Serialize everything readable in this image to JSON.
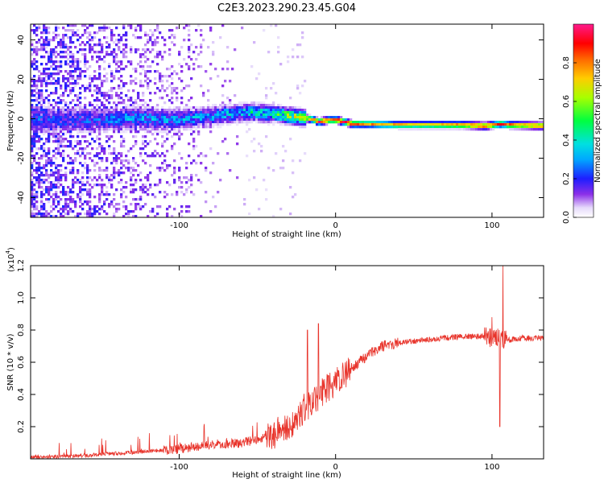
{
  "figure": {
    "title": "C2E3.2023.290.23.45.G04"
  },
  "colors": {
    "snr_line": "#e8332a",
    "colormap": [
      "#ffffff",
      "#d7c4f7",
      "#8b2fe8",
      "#1e1eff",
      "#00e0ff",
      "#00ff40",
      "#d8ff00",
      "#ff8800",
      "#ff0000",
      "#ff1a8c"
    ]
  },
  "chart_data": [
    {
      "type": "heatmap",
      "xlabel": "Height of straight line (km)",
      "ylabel": "Frequency (Hz)",
      "xlim": [
        -195,
        133
      ],
      "ylim": [
        -50,
        48
      ],
      "x_ticks": [
        -100,
        0,
        100
      ],
      "x_tick_labels": [
        "-100",
        "0",
        "100"
      ],
      "y_ticks": [
        -40,
        -20,
        0,
        20,
        40
      ],
      "y_tick_labels": [
        "-40",
        "-20",
        "0",
        "20",
        "40"
      ],
      "grid": false,
      "colorbar": {
        "label": "Normalized spectral amplitude",
        "range": [
          0,
          1
        ],
        "ticks": [
          0.0,
          0.2,
          0.4,
          0.6,
          0.8
        ],
        "tick_labels": [
          "0.0",
          "0.2",
          "0.4",
          "0.6",
          "0.8"
        ]
      },
      "ridge": {
        "height_km": [
          -150,
          -130,
          -110,
          -90,
          -70,
          -55,
          -40,
          -30,
          -20,
          -14,
          -12,
          -5,
          0,
          5,
          10,
          20,
          40,
          60,
          80,
          95,
          100,
          105,
          110,
          133
        ],
        "frequency_hz": [
          0,
          1,
          0,
          1,
          3,
          4,
          3,
          2,
          1,
          0,
          -1,
          0,
          0,
          -1,
          -2,
          -2,
          -2.5,
          -2.5,
          -2.5,
          -3,
          -2.5,
          -2,
          -2.5,
          -3
        ],
        "peak_amplitude": [
          0.3,
          0.4,
          0.4,
          0.4,
          0.45,
          0.5,
          0.6,
          0.8,
          0.7,
          0.9,
          1.0,
          0.9,
          1.0,
          1.0,
          0.95,
          0.85,
          0.8,
          0.8,
          0.9,
          0.95,
          0.9,
          0.95,
          0.9,
          0.9
        ]
      }
    },
    {
      "type": "line",
      "xlabel": "Height of straight line (km)",
      "ylabel": "SNR (10 * v/v)",
      "y_multiplier": "(x10",
      "y_multiplier_exp": "4",
      "y_multiplier_close": ")",
      "xlim": [
        -195,
        133
      ],
      "ylim": [
        0,
        1.2
      ],
      "x_ticks": [
        -100,
        0,
        100
      ],
      "x_tick_labels": [
        "-100",
        "0",
        "100"
      ],
      "y_ticks": [
        0.2,
        0.4,
        0.6,
        0.8,
        1.0,
        1.2
      ],
      "y_tick_labels": [
        "0.2",
        "0.4",
        "0.6",
        "0.8",
        "1.0",
        "1.2"
      ],
      "grid": false,
      "series": [
        {
          "x": [
            -195,
            -160,
            -130,
            -100,
            -80,
            -60,
            -40,
            -30,
            -20,
            -10,
            0,
            10,
            20,
            30,
            40,
            50,
            60,
            80,
            95,
            100,
            105,
            110,
            120,
            133
          ],
          "y": [
            0.01,
            0.02,
            0.04,
            0.06,
            0.09,
            0.1,
            0.14,
            0.2,
            0.3,
            0.4,
            0.48,
            0.56,
            0.64,
            0.7,
            0.72,
            0.73,
            0.74,
            0.76,
            0.76,
            0.75,
            0.75,
            0.74,
            0.75,
            0.75
          ]
        }
      ],
      "spikes": [
        {
          "x": -18,
          "y": 0.8
        },
        {
          "x": -11,
          "y": 0.84
        },
        {
          "x": 100,
          "y": 0.88
        },
        {
          "x": 105,
          "y": 0.2
        },
        {
          "x": 107,
          "y": 1.2
        }
      ]
    }
  ]
}
